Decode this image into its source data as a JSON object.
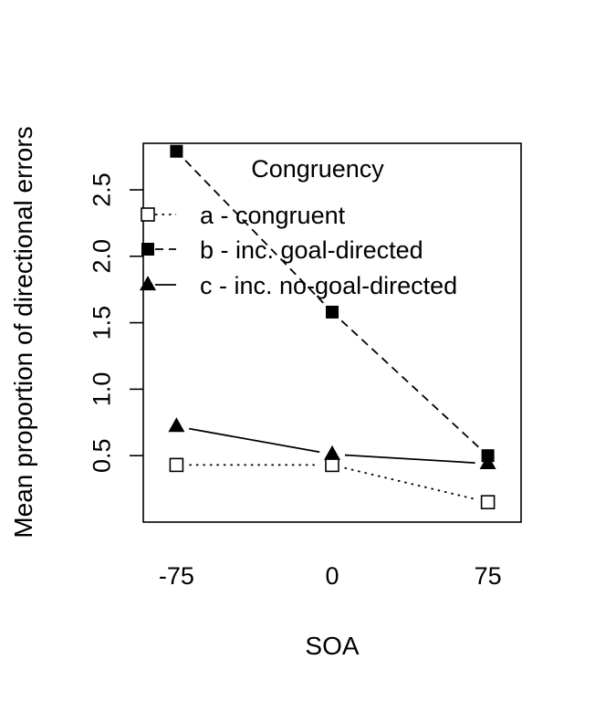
{
  "chart_data": {
    "type": "line",
    "title": "",
    "xlabel": "SOA",
    "ylabel": "Mean proportion of directional errors",
    "x": [
      -75,
      0,
      75
    ],
    "x_tick_labels": [
      "-75",
      "0",
      "75"
    ],
    "xlim": [
      -91,
      91
    ],
    "ylim": [
      0.0,
      2.85
    ],
    "y_ticks": [
      0.5,
      1.0,
      1.5,
      2.0,
      2.5
    ],
    "y_tick_labels": [
      "0.5",
      "1.0",
      "1.5",
      "2.0",
      "2.5"
    ],
    "grid": false,
    "legend": {
      "title": "Congruency",
      "position": "top"
    },
    "series": [
      {
        "name": "a - congruent",
        "values": [
          0.43,
          0.43,
          0.15
        ],
        "marker": "open-square",
        "line": "dotted"
      },
      {
        "name": "b - inc. goal-directed",
        "values": [
          2.79,
          1.58,
          0.5
        ],
        "marker": "filled-square",
        "line": "dashed"
      },
      {
        "name": "c - inc. no-goal-directed",
        "values": [
          0.72,
          0.51,
          0.44
        ],
        "marker": "filled-triangle",
        "line": "solid"
      }
    ]
  }
}
